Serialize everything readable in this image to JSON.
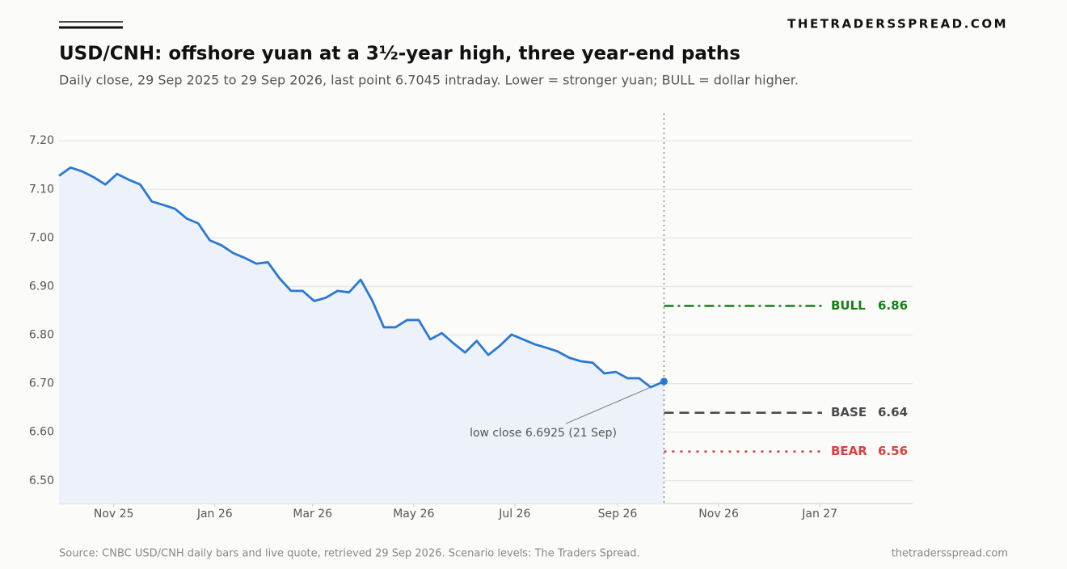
{
  "brand": "THETRADERSSPREAD.COM",
  "footer": {
    "source": "Source: CNBC USD/CNH daily bars and live quote, retrieved 29 Sep 2026. Scenario levels: The Traders Spread.",
    "site": "thetradersspread.com"
  },
  "chart_data": {
    "type": "line",
    "title": "USD/CNH: offshore yuan at a 3½-year high, three year-end paths",
    "subtitle": "Daily close, 29 Sep 2025 to 29 Sep 2026, last point 6.7045 intraday. Lower = stronger yuan; BULL = dollar higher.",
    "x": [
      "2025-09-29",
      "2025-10-06",
      "2025-10-13",
      "2025-10-20",
      "2025-10-27",
      "2025-11-03",
      "2025-11-10",
      "2025-11-17",
      "2025-11-24",
      "2025-12-01",
      "2025-12-08",
      "2025-12-15",
      "2025-12-22",
      "2025-12-29",
      "2026-01-05",
      "2026-01-12",
      "2026-01-19",
      "2026-01-26",
      "2026-02-02",
      "2026-02-09",
      "2026-02-16",
      "2026-02-23",
      "2026-03-02",
      "2026-03-09",
      "2026-03-16",
      "2026-03-23",
      "2026-03-30",
      "2026-04-06",
      "2026-04-13",
      "2026-04-20",
      "2026-04-27",
      "2026-05-04",
      "2026-05-11",
      "2026-05-18",
      "2026-05-25",
      "2026-06-01",
      "2026-06-08",
      "2026-06-15",
      "2026-06-22",
      "2026-06-29",
      "2026-07-06",
      "2026-07-13",
      "2026-07-20",
      "2026-07-27",
      "2026-08-03",
      "2026-08-10",
      "2026-08-17",
      "2026-08-24",
      "2026-08-31",
      "2026-09-07",
      "2026-09-14",
      "2026-09-21",
      "2026-09-29"
    ],
    "series": [
      {
        "name": "USD/CNH",
        "color": "#2b78d4",
        "area_color": "#edf2fa",
        "values": [
          7.128,
          7.145,
          7.137,
          7.125,
          7.11,
          7.132,
          7.12,
          7.11,
          7.075,
          7.068,
          7.06,
          7.04,
          7.03,
          6.995,
          6.985,
          6.969,
          6.959,
          6.947,
          6.95,
          6.917,
          6.891,
          6.891,
          6.87,
          6.877,
          6.891,
          6.888,
          6.914,
          6.871,
          6.816,
          6.816,
          6.831,
          6.831,
          6.791,
          6.804,
          6.783,
          6.764,
          6.788,
          6.759,
          6.778,
          6.801,
          6.791,
          6.781,
          6.774,
          6.766,
          6.753,
          6.746,
          6.743,
          6.721,
          6.724,
          6.711,
          6.711,
          6.6925,
          6.7045
        ]
      }
    ],
    "scenarios": [
      {
        "name": "BULL",
        "value": 6.86,
        "color": "#138013",
        "style": "dashdot"
      },
      {
        "name": "BASE",
        "value": 6.64,
        "color": "#4a4a4a",
        "style": "dash"
      },
      {
        "name": "BEAR",
        "value": 6.56,
        "color": "#d94040",
        "style": "dot"
      }
    ],
    "annotation": {
      "text": "low close 6.6925 (21 Sep)",
      "x": "2026-09-21",
      "y": 6.6925
    },
    "xlim": [
      "2025-09-29",
      "2027-02-26"
    ],
    "xticks": [
      {
        "value": "2025-11-01",
        "label": "Nov 25"
      },
      {
        "value": "2026-01-01",
        "label": "Jan 26"
      },
      {
        "value": "2026-03-01",
        "label": "Mar 26"
      },
      {
        "value": "2026-05-01",
        "label": "May 26"
      },
      {
        "value": "2026-07-01",
        "label": "Jul 26"
      },
      {
        "value": "2026-09-01",
        "label": "Sep 26"
      },
      {
        "value": "2026-11-01",
        "label": "Nov 26"
      },
      {
        "value": "2027-01-01",
        "label": "Jan 27"
      }
    ],
    "ylim": [
      6.453,
      7.257
    ],
    "yticks": [
      {
        "value": 6.5,
        "label": "6.50"
      },
      {
        "value": 6.6,
        "label": "6.60"
      },
      {
        "value": 6.7,
        "label": "6.70"
      },
      {
        "value": 6.8,
        "label": "6.80"
      },
      {
        "value": 6.9,
        "label": "6.90"
      },
      {
        "value": 7.0,
        "label": "7.00"
      },
      {
        "value": 7.1,
        "label": "7.10"
      },
      {
        "value": 7.2,
        "label": "7.20"
      }
    ],
    "grid": true
  }
}
